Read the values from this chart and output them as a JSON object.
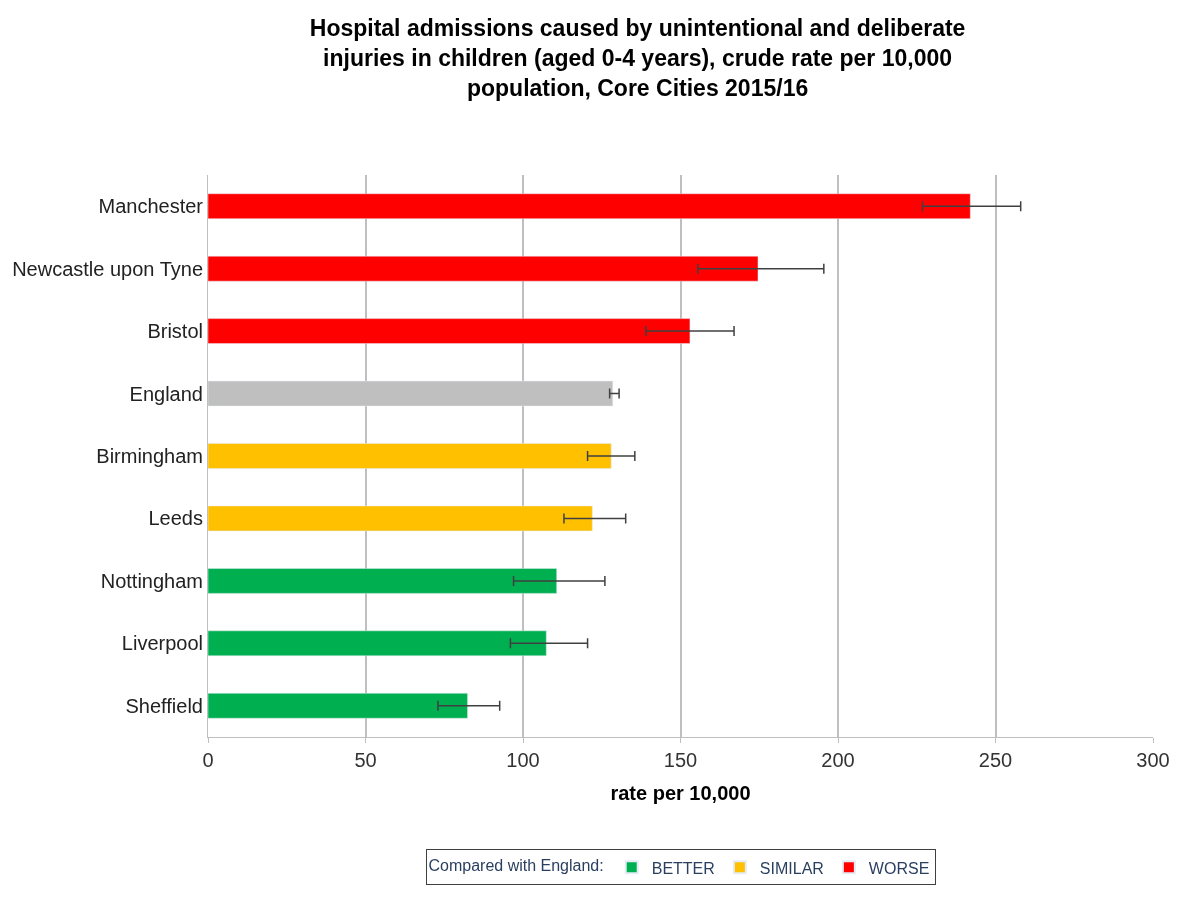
{
  "chart_data": {
    "type": "bar",
    "orientation": "horizontal",
    "title": "Hospital admissions caused by unintentional and deliberate\ninjuries in children (aged 0-4 years), crude rate per 10,000\npopulation, Core Cities 2015/16",
    "xlabel": "rate per 10,000",
    "legend_title": "Compared with England:",
    "categories": [
      "Manchester",
      "Newcastle upon Tyne",
      "Bristol",
      "England",
      "Birmingham",
      "Leeds",
      "Nottingham",
      "Liverpool",
      "Sheffield"
    ],
    "series": [
      {
        "name": "BETTER",
        "color": "#00b050",
        "values": [
          null,
          null,
          null,
          null,
          null,
          null,
          110.7,
          107.4,
          82.4
        ],
        "errors": [
          null,
          null,
          null,
          null,
          null,
          null,
          [
            97,
            126
          ],
          [
            96,
            120.5
          ],
          [
            73,
            92.6
          ]
        ]
      },
      {
        "name": "SIMILAR",
        "color": "#ffc000",
        "values": [
          null,
          null,
          null,
          null,
          128,
          122,
          null,
          null,
          null
        ],
        "errors": [
          null,
          null,
          null,
          null,
          [
            120.5,
            135.5
          ],
          [
            113,
            132.6
          ],
          null,
          null,
          null
        ]
      },
      {
        "name": "WORSE",
        "color": "#ff0000",
        "values": [
          242,
          174.6,
          153,
          null,
          null,
          null,
          null,
          null,
          null
        ],
        "errors": [
          [
            226.8,
            258
          ],
          [
            155.5,
            195.5
          ],
          [
            139,
            167
          ],
          null,
          null,
          null,
          null,
          null,
          null
        ]
      },
      {
        "color": "#bfbfbf",
        "values": [
          null,
          null,
          null,
          128.5,
          null,
          null,
          null,
          null,
          null
        ],
        "errors": [
          null,
          null,
          null,
          [
            127.5,
            130.5
          ],
          null,
          null,
          null,
          null,
          null
        ]
      }
    ],
    "xlim": [
      0,
      300
    ],
    "xticks": [
      0,
      50,
      100,
      150,
      200,
      250,
      300
    ],
    "grid": "x",
    "legend": "bottom"
  }
}
